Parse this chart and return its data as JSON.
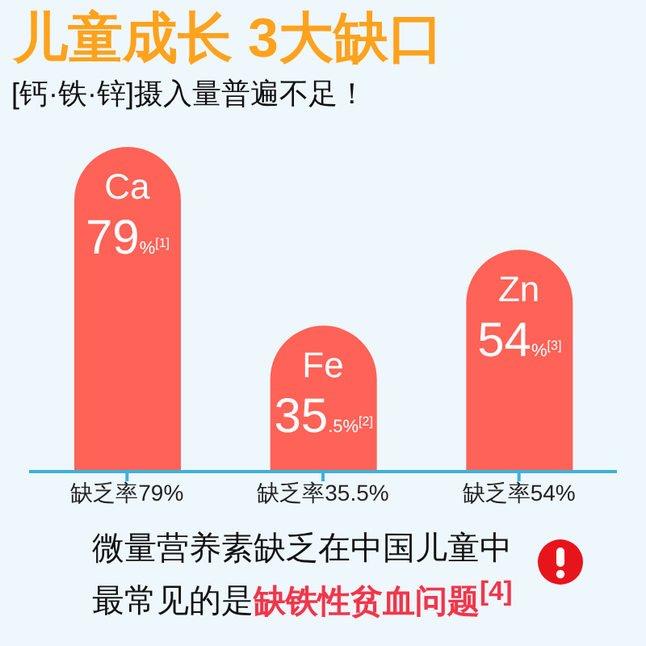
{
  "chart_data": {
    "type": "bar",
    "title": "儿童成长 3大缺口",
    "subtitle": "[钙·铁·锌]摄入量普遍不足！",
    "categories": [
      "缺乏率79%",
      "缺乏率35.5%",
      "缺乏率54%"
    ],
    "values": [
      79,
      35.5,
      54
    ],
    "color": "#ff6257",
    "value_labels": [
      "79%$^{[1]}$",
      "35.5%$^{[2]}$",
      "54%$^{[3]}$"
    ],
    "annotations": [
      {
        "text": "Ca",
        "x": "缺乏率79%",
        "y": 79
      },
      {
        "text": "Fe",
        "x": "缺乏率35.5%",
        "y": 35.5
      },
      {
        "text": "Zn",
        "x": "缺乏率54%",
        "y": 54
      },
      "微量营养素缺乏在中国儿童中",
      "最常见的是",
      "缺铁性贫血问题$^{[4]}$"
    ],
    "tick_labels": "x"
  }
}
